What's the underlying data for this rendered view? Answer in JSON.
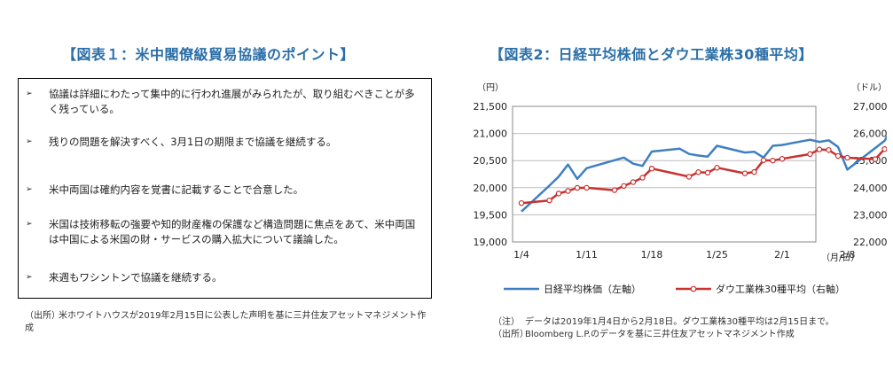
{
  "left_panel": {
    "title": "【図表１：米中閣僚級貿易協議のポイント】",
    "bullet_marker": "➢",
    "bullets": [
      "協議は詳細にわたって集中的に行われ進展がみられたが、取り組むべきことが多く残っている。",
      "残りの問題を解決すべく、3月1日の期限まで協議を継続する。",
      "米中両国は確約内容を覚書に記載することで合意した。",
      "米国は技術移転の強要や知的財産権の保護など構造問題に焦点をあて、米中両国は中国による米国の財・サービスの購入拡大について議論した。",
      "来週もワシントンで協議を継続する。"
    ],
    "source_label": "（出所）",
    "source_text": "米ホワイトハウスが2019年2月15日に公表した声明を基に三井住友アセットマネジメント作成"
  },
  "right_panel": {
    "title": "【図表2：日経平均株価とダウ工業株30種平均】",
    "note_label": "（注）",
    "note_text": "データは2019年1月4日から2月18日。ダウ工業株30種平均は2月15日まで。",
    "source_label": "（出所）",
    "source_text": "Bloomberg L.P.のデータを基に三井住友アセットマネジメント作成"
  },
  "chart_data": {
    "type": "line",
    "left_unit": "（円）",
    "right_unit": "（ドル）",
    "x_unit": "（月/日）",
    "x_tick_labels": [
      "1/4",
      "1/11",
      "1/18",
      "1/25",
      "2/1",
      "2/8",
      "2/15"
    ],
    "ylim_left": [
      19000,
      21500
    ],
    "yticks_left": [
      "19,000",
      "19,500",
      "20,000",
      "20,500",
      "21,000",
      "21,500"
    ],
    "ylim_right": [
      22000,
      27000
    ],
    "yticks_right": [
      "22,000",
      "23,000",
      "24,000",
      "25,000",
      "26,000",
      "27,000"
    ],
    "grid": true,
    "legend_position": "bottom",
    "series": [
      {
        "name": "日経平均株価（左軸）",
        "axis": "left",
        "color": "#3f7fc1",
        "marker": "none",
        "x": [
          "1/4",
          "1/7",
          "1/8",
          "1/9",
          "1/10",
          "1/11",
          "1/15",
          "1/16",
          "1/17",
          "1/18",
          "1/21",
          "1/22",
          "1/23",
          "1/24",
          "1/25",
          "1/28",
          "1/29",
          "1/30",
          "1/31",
          "2/1",
          "2/4",
          "2/5",
          "2/6",
          "2/7",
          "2/8",
          "2/12",
          "2/13",
          "2/14",
          "2/15",
          "2/18"
        ],
        "values": [
          19561,
          20038,
          20204,
          20427,
          20164,
          20360,
          20555,
          20442,
          20402,
          20666,
          20719,
          20622,
          20593,
          20574,
          20773,
          20649,
          20664,
          20556,
          20773,
          20788,
          20884,
          20844,
          20874,
          20751,
          20333,
          20864,
          21144,
          21139,
          20900,
          21281
        ]
      },
      {
        "name": "ダウ工業株30種平均（右軸）",
        "axis": "right",
        "color": "#c8322f",
        "marker": "circle",
        "x": [
          "1/4",
          "1/7",
          "1/8",
          "1/9",
          "1/10",
          "1/11",
          "1/14",
          "1/15",
          "1/16",
          "1/17",
          "1/18",
          "1/22",
          "1/23",
          "1/24",
          "1/25",
          "1/28",
          "1/29",
          "1/30",
          "1/31",
          "2/1",
          "2/4",
          "2/5",
          "2/6",
          "2/7",
          "2/8",
          "2/11",
          "2/12",
          "2/13",
          "2/14",
          "2/15"
        ],
        "values": [
          23433,
          23531,
          23787,
          23879,
          23995,
          23996,
          23910,
          24065,
          24207,
          24370,
          24706,
          24404,
          24575,
          24553,
          24737,
          24528,
          24579,
          25014,
          24999,
          25064,
          25239,
          25411,
          25390,
          25169,
          25106,
          25053,
          25425,
          25543,
          25439,
          25883
        ]
      }
    ]
  }
}
